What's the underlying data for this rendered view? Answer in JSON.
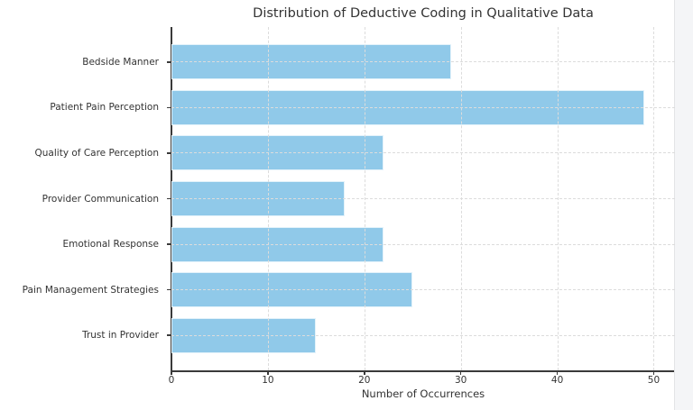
{
  "page": {
    "background": "#ffffff",
    "edge_strip_color": "#f4f5f7",
    "edge_line_color": "#e3e4e6"
  },
  "chart_data": {
    "type": "bar",
    "orientation": "horizontal",
    "title": "Distribution of Deductive Coding in Qualitative Data",
    "xlabel": "Number of Occurrences",
    "ylabel": "",
    "categories": [
      "Bedside Manner",
      "Patient Pain Perception",
      "Quality of Care Perception",
      "Provider Communication",
      "Emotional Response",
      "Pain Management Strategies",
      "Trust in Provider"
    ],
    "values": [
      29,
      49,
      22,
      18,
      22,
      25,
      15
    ],
    "xticks": [
      0,
      10,
      20,
      30,
      40,
      50
    ],
    "xlim": [
      0,
      52.2
    ],
    "grid": "dashed",
    "grid_position": "above-bars",
    "legend": "none",
    "colors": {
      "bar": "#90C9E9",
      "axis": "#3A3A3A",
      "grid": "#DCDCDC",
      "text": "#333333"
    }
  }
}
